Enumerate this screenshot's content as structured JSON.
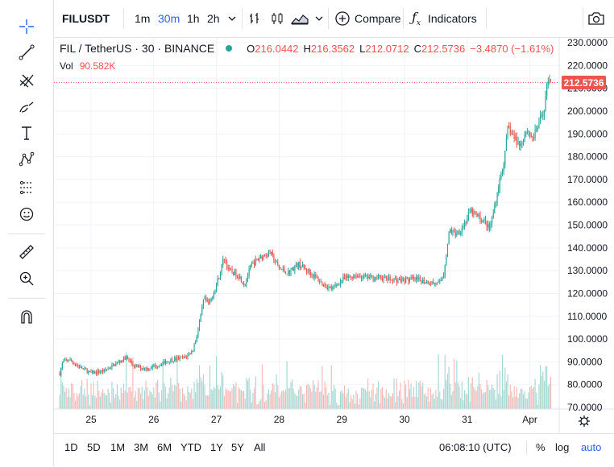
{
  "toolbar": {
    "symbol": "FILUSDT",
    "intervals": [
      "1m",
      "30m",
      "1h",
      "2h"
    ],
    "active_interval": "30m",
    "compare_label": "Compare",
    "indicators_label": "Indicators"
  },
  "legend": {
    "title": "FIL / TetherUS · 30 · BINANCE",
    "open_label": "O",
    "open": "216.0442",
    "high_label": "H",
    "high": "216.3562",
    "low_label": "L",
    "low": "212.0712",
    "close_label": "C",
    "close": "212.5736",
    "change": "−3.4870 (−1.61%)",
    "vol_label": "Vol",
    "vol": "90.582K"
  },
  "last_price_tag": "212.5736",
  "bottom_bar": {
    "ranges": [
      "1D",
      "5D",
      "1M",
      "3M",
      "6M",
      "YTD",
      "1Y",
      "5Y",
      "All"
    ],
    "clock": "06:08:10 (UTC)",
    "percent_label": "%",
    "log_label": "log",
    "auto_label": "auto"
  },
  "colors": {
    "up": "#26a69a",
    "down": "#ef5350",
    "accent": "#2962ff",
    "up_volume": "#a5d6d1",
    "down_volume": "#f6b8b6"
  },
  "icons": [
    "crosshair-icon",
    "trend-line-icon",
    "pitchfork-icon",
    "brush-icon",
    "text-icon",
    "pattern-icon",
    "prediction-icon",
    "emoji-icon",
    "ruler-icon",
    "zoom-in-icon",
    "magnet-icon",
    "candles-icon",
    "area-chart-icon",
    "plus-circle-icon",
    "function-icon",
    "camera-icon",
    "gear-icon"
  ],
  "chart_data": {
    "type": "candlestick",
    "interval": "30m",
    "ylim": [
      70,
      232
    ],
    "y_ticks": [
      "230.0000",
      "220.0000",
      "210.0000",
      "200.0000",
      "190.0000",
      "180.0000",
      "170.0000",
      "160.0000",
      "150.0000",
      "140.0000",
      "130.0000",
      "120.0000",
      "110.0000",
      "100.0000",
      "90.0000",
      "80.0000",
      "70.0000"
    ],
    "y_tick_values": [
      230,
      220,
      210,
      200,
      190,
      180,
      170,
      160,
      150,
      140,
      130,
      120,
      110,
      100,
      90,
      80,
      70
    ],
    "x_labels": [
      "25",
      "26",
      "27",
      "28",
      "29",
      "30",
      "31",
      "Apr"
    ],
    "x_label_days": [
      1,
      2,
      3,
      4,
      5,
      6,
      7,
      8
    ],
    "day_start": 0.5,
    "day_end": 8.35,
    "close_anchors": [
      [
        0.5,
        85
      ],
      [
        0.55,
        90
      ],
      [
        0.65,
        91
      ],
      [
        0.8,
        88
      ],
      [
        1.0,
        85
      ],
      [
        1.2,
        86
      ],
      [
        1.45,
        90
      ],
      [
        1.55,
        92
      ],
      [
        1.7,
        88
      ],
      [
        1.9,
        87
      ],
      [
        2.1,
        89
      ],
      [
        2.3,
        91
      ],
      [
        2.5,
        92
      ],
      [
        2.62,
        95
      ],
      [
        2.7,
        103
      ],
      [
        2.75,
        110
      ],
      [
        2.8,
        118
      ],
      [
        2.88,
        115
      ],
      [
        2.95,
        120
      ],
      [
        3.05,
        128
      ],
      [
        3.12,
        136
      ],
      [
        3.2,
        130
      ],
      [
        3.35,
        128
      ],
      [
        3.45,
        124
      ],
      [
        3.55,
        132
      ],
      [
        3.7,
        136
      ],
      [
        3.85,
        138
      ],
      [
        4.0,
        131
      ],
      [
        4.15,
        129
      ],
      [
        4.3,
        133
      ],
      [
        4.5,
        129
      ],
      [
        4.7,
        124
      ],
      [
        4.85,
        122
      ],
      [
        5.0,
        126
      ],
      [
        5.2,
        128
      ],
      [
        5.4,
        127
      ],
      [
        5.6,
        127
      ],
      [
        5.8,
        126
      ],
      [
        6.0,
        126
      ],
      [
        6.2,
        126
      ],
      [
        6.4,
        125
      ],
      [
        6.55,
        124
      ],
      [
        6.62,
        128
      ],
      [
        6.68,
        140
      ],
      [
        6.72,
        148
      ],
      [
        6.8,
        146
      ],
      [
        6.9,
        148
      ],
      [
        7.0,
        153
      ],
      [
        7.05,
        156
      ],
      [
        7.1,
        155
      ],
      [
        7.2,
        153
      ],
      [
        7.3,
        151
      ],
      [
        7.35,
        148
      ],
      [
        7.4,
        153
      ],
      [
        7.5,
        167
      ],
      [
        7.6,
        180
      ],
      [
        7.65,
        193
      ],
      [
        7.75,
        188
      ],
      [
        7.85,
        185
      ],
      [
        7.95,
        192
      ],
      [
        8.05,
        188
      ],
      [
        8.15,
        195
      ],
      [
        8.22,
        200
      ],
      [
        8.28,
        212
      ],
      [
        8.3,
        216
      ],
      [
        8.35,
        212.57
      ]
    ],
    "volume_bars": 330
  }
}
